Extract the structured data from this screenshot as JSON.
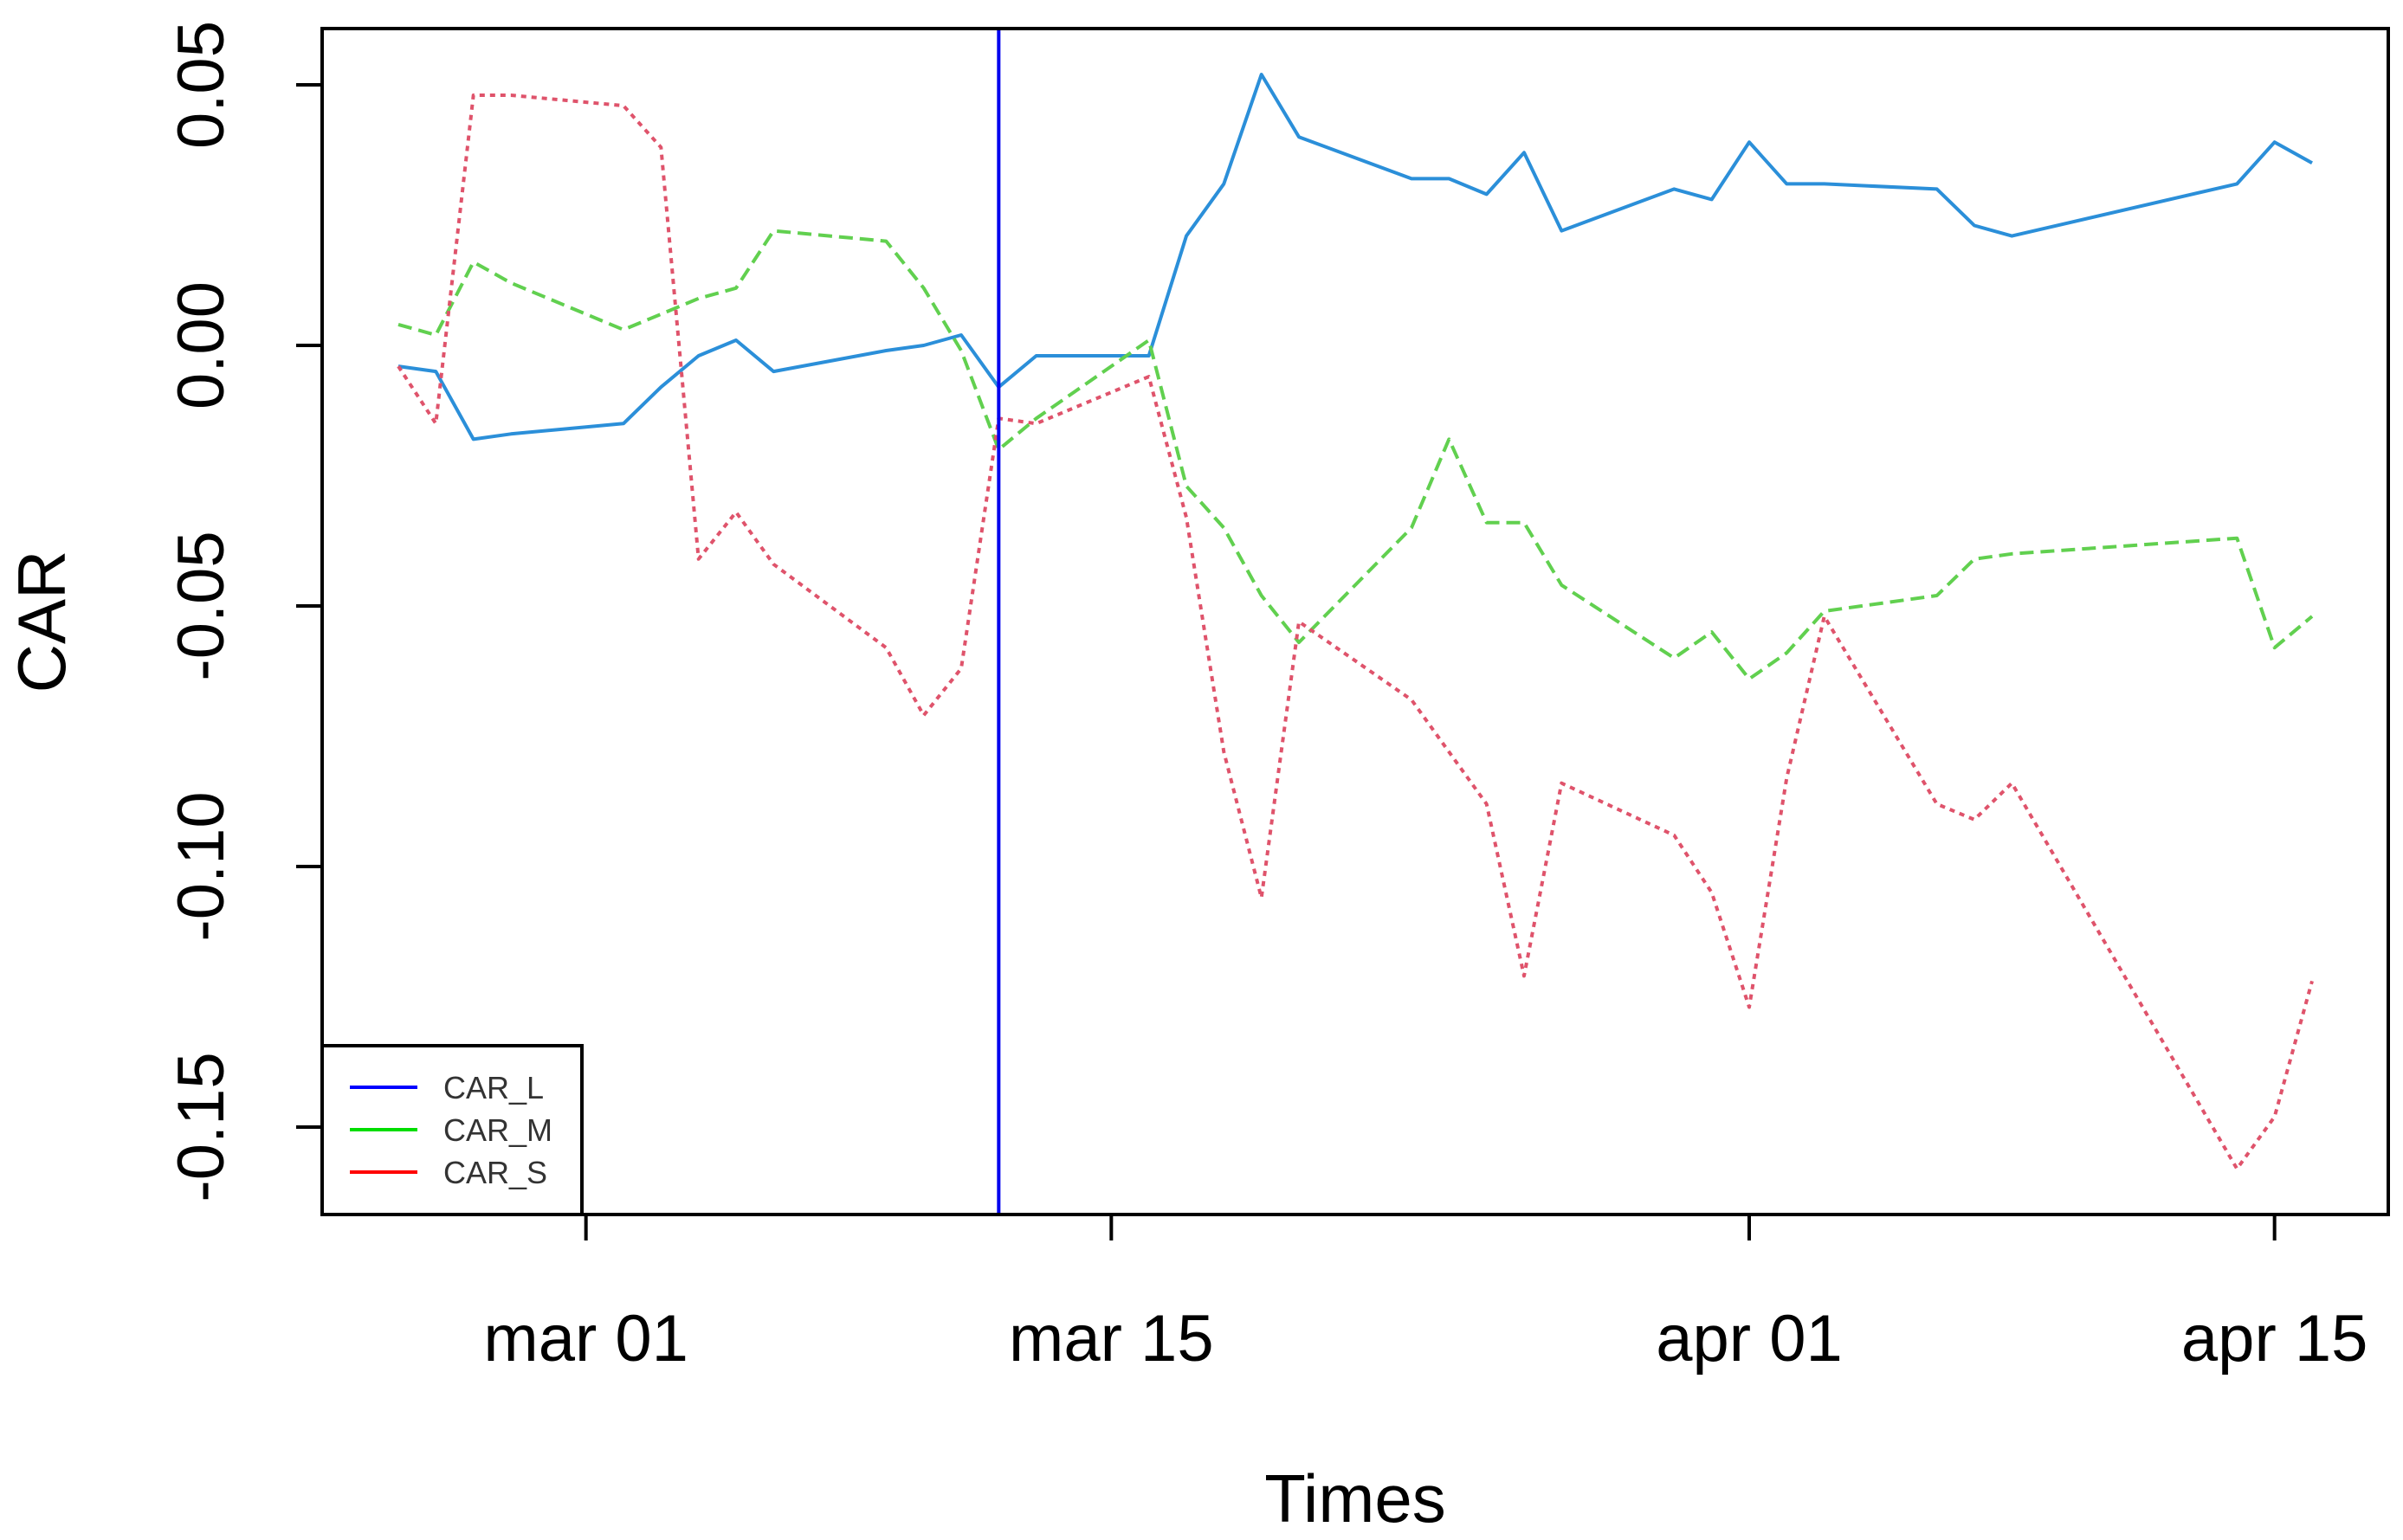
{
  "chart_data": {
    "type": "line",
    "xlabel": "Times",
    "ylabel": "CAR",
    "x_start": "2020-02-25",
    "x_end": "2020-04-16",
    "ylim": [
      -0.165,
      0.06
    ],
    "x_ticks": [
      {
        "date": "2020-03-01",
        "label": "mar 01"
      },
      {
        "date": "2020-03-15",
        "label": "mar 15"
      },
      {
        "date": "2020-04-01",
        "label": "apr 01"
      },
      {
        "date": "2020-04-15",
        "label": "apr 15"
      }
    ],
    "y_ticks": [
      {
        "value": 0.05,
        "label": "0.05"
      },
      {
        "value": 0.0,
        "label": "0.00"
      },
      {
        "value": -0.05,
        "label": "-0.05"
      },
      {
        "value": -0.1,
        "label": "-0.10"
      },
      {
        "value": -0.15,
        "label": "-0.15"
      }
    ],
    "vline": {
      "date": "2020-03-12",
      "color": "#0000ee"
    },
    "grid": false,
    "legend": {
      "position": "bottom-left",
      "entries": [
        {
          "label": "CAR_L",
          "color": "#0000ff"
        },
        {
          "label": "CAR_M",
          "color": "#00dd00"
        },
        {
          "label": "CAR_S",
          "color": "#ff0000"
        }
      ]
    },
    "series": [
      {
        "name": "CAR_L",
        "color": "#2b8fd9",
        "dash": "solid",
        "points": [
          [
            "2020-02-25",
            -0.004
          ],
          [
            "2020-02-26",
            -0.005
          ],
          [
            "2020-02-27",
            -0.018
          ],
          [
            "2020-02-28",
            -0.017
          ],
          [
            "2020-03-02",
            -0.015
          ],
          [
            "2020-03-03",
            -0.008
          ],
          [
            "2020-03-04",
            -0.002
          ],
          [
            "2020-03-05",
            0.001
          ],
          [
            "2020-03-06",
            -0.005
          ],
          [
            "2020-03-09",
            -0.001
          ],
          [
            "2020-03-10",
            0.0
          ],
          [
            "2020-03-11",
            0.002
          ],
          [
            "2020-03-12",
            -0.008
          ],
          [
            "2020-03-13",
            -0.002
          ],
          [
            "2020-03-16",
            -0.002
          ],
          [
            "2020-03-17",
            0.021
          ],
          [
            "2020-03-18",
            0.031
          ],
          [
            "2020-03-19",
            0.052
          ],
          [
            "2020-03-20",
            0.04
          ],
          [
            "2020-03-23",
            0.032
          ],
          [
            "2020-03-24",
            0.032
          ],
          [
            "2020-03-25",
            0.029
          ],
          [
            "2020-03-26",
            0.037
          ],
          [
            "2020-03-27",
            0.022
          ],
          [
            "2020-03-30",
            0.03
          ],
          [
            "2020-03-31",
            0.028
          ],
          [
            "2020-04-01",
            0.039
          ],
          [
            "2020-04-02",
            0.031
          ],
          [
            "2020-04-03",
            0.031
          ],
          [
            "2020-04-06",
            0.03
          ],
          [
            "2020-04-07",
            0.023
          ],
          [
            "2020-04-08",
            0.021
          ],
          [
            "2020-04-14",
            0.031
          ],
          [
            "2020-04-15",
            0.039
          ],
          [
            "2020-04-16",
            0.035
          ]
        ]
      },
      {
        "name": "CAR_M",
        "color": "#61d04f",
        "dash": "dashed",
        "points": [
          [
            "2020-02-25",
            0.004
          ],
          [
            "2020-02-26",
            0.002
          ],
          [
            "2020-02-27",
            0.016
          ],
          [
            "2020-02-28",
            0.012
          ],
          [
            "2020-03-02",
            0.003
          ],
          [
            "2020-03-03",
            0.006
          ],
          [
            "2020-03-04",
            0.009
          ],
          [
            "2020-03-05",
            0.011
          ],
          [
            "2020-03-06",
            0.022
          ],
          [
            "2020-03-09",
            0.02
          ],
          [
            "2020-03-10",
            0.011
          ],
          [
            "2020-03-11",
            -0.001
          ],
          [
            "2020-03-12",
            -0.02
          ],
          [
            "2020-03-13",
            -0.014
          ],
          [
            "2020-03-16",
            0.001
          ],
          [
            "2020-03-17",
            -0.027
          ],
          [
            "2020-03-18",
            -0.035
          ],
          [
            "2020-03-19",
            -0.048
          ],
          [
            "2020-03-20",
            -0.057
          ],
          [
            "2020-03-23",
            -0.035
          ],
          [
            "2020-03-24",
            -0.018
          ],
          [
            "2020-03-25",
            -0.034
          ],
          [
            "2020-03-26",
            -0.034
          ],
          [
            "2020-03-27",
            -0.046
          ],
          [
            "2020-03-30",
            -0.06
          ],
          [
            "2020-03-31",
            -0.055
          ],
          [
            "2020-04-01",
            -0.064
          ],
          [
            "2020-04-02",
            -0.059
          ],
          [
            "2020-04-03",
            -0.051
          ],
          [
            "2020-04-06",
            -0.048
          ],
          [
            "2020-04-07",
            -0.041
          ],
          [
            "2020-04-08",
            -0.04
          ],
          [
            "2020-04-14",
            -0.037
          ],
          [
            "2020-04-15",
            -0.058
          ],
          [
            "2020-04-16",
            -0.052
          ]
        ]
      },
      {
        "name": "CAR_S",
        "color": "#df536b",
        "dash": "dotted",
        "points": [
          [
            "2020-02-25",
            -0.004
          ],
          [
            "2020-02-26",
            -0.015
          ],
          [
            "2020-02-27",
            0.048
          ],
          [
            "2020-02-28",
            0.048
          ],
          [
            "2020-03-02",
            0.046
          ],
          [
            "2020-03-03",
            0.038
          ],
          [
            "2020-03-04",
            -0.041
          ],
          [
            "2020-03-05",
            -0.032
          ],
          [
            "2020-03-06",
            -0.042
          ],
          [
            "2020-03-09",
            -0.058
          ],
          [
            "2020-03-10",
            -0.071
          ],
          [
            "2020-03-11",
            -0.062
          ],
          [
            "2020-03-12",
            -0.014
          ],
          [
            "2020-03-13",
            -0.015
          ],
          [
            "2020-03-16",
            -0.006
          ],
          [
            "2020-03-17",
            -0.033
          ],
          [
            "2020-03-18",
            -0.078
          ],
          [
            "2020-03-19",
            -0.106
          ],
          [
            "2020-03-20",
            -0.053
          ],
          [
            "2020-03-23",
            -0.068
          ],
          [
            "2020-03-24",
            -0.078
          ],
          [
            "2020-03-25",
            -0.088
          ],
          [
            "2020-03-26",
            -0.121
          ],
          [
            "2020-03-27",
            -0.084
          ],
          [
            "2020-03-30",
            -0.094
          ],
          [
            "2020-03-31",
            -0.105
          ],
          [
            "2020-04-01",
            -0.127
          ],
          [
            "2020-04-02",
            -0.083
          ],
          [
            "2020-04-03",
            -0.052
          ],
          [
            "2020-04-06",
            -0.088
          ],
          [
            "2020-04-07",
            -0.091
          ],
          [
            "2020-04-08",
            -0.084
          ],
          [
            "2020-04-14",
            -0.158
          ],
          [
            "2020-04-15",
            -0.148
          ],
          [
            "2020-04-16",
            -0.122
          ]
        ]
      }
    ]
  }
}
